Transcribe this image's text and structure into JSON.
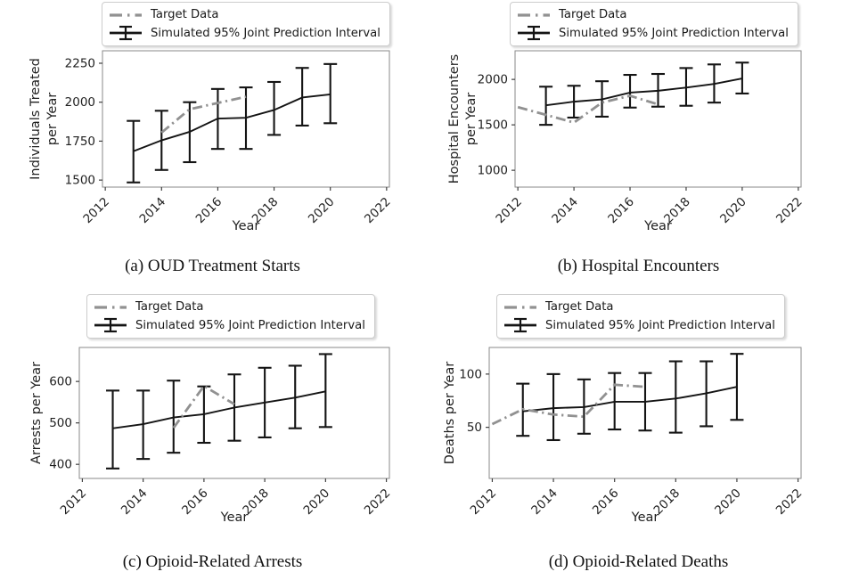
{
  "legend": {
    "target_label": "Target Data",
    "simulated_label": "Simulated 95% Joint Prediction Interval"
  },
  "colors": {
    "target": "#919191",
    "simulated": "#141414",
    "spine": "#8a8a8a",
    "tick": "#404040",
    "text": "#1f1f1f",
    "caption": "#111111",
    "legend_border": "#cccccc",
    "background": "#ffffff"
  },
  "chart_data": [
    {
      "id": "a",
      "type": "line",
      "caption": "(a) OUD Treatment Starts",
      "xlabel": "Year",
      "ylabel": "Individuals Treated\nper Year",
      "xlim": [
        2011.9,
        2022.1
      ],
      "ylim": [
        1455,
        2330
      ],
      "xticks": [
        2012,
        2014,
        2016,
        2018,
        2020,
        2022
      ],
      "yticks": [
        1500,
        1750,
        2000,
        2250
      ],
      "x": [
        2013,
        2014,
        2015,
        2016,
        2017,
        2018,
        2019,
        2020
      ],
      "series": [
        {
          "name": "Simulated 95% Joint Prediction Interval",
          "style": "errorbar",
          "values": [
            1685,
            1755,
            1810,
            1895,
            1900,
            1950,
            2030,
            2050
          ],
          "lower": [
            1485,
            1565,
            1615,
            1700,
            1700,
            1790,
            1850,
            1865
          ],
          "upper": [
            1880,
            1945,
            2000,
            2085,
            2095,
            2130,
            2220,
            2245
          ]
        },
        {
          "name": "Target Data",
          "style": "dashdot",
          "x": [
            2014,
            2015,
            2016,
            2017
          ],
          "values": [
            1805,
            1955,
            1995,
            2035
          ]
        }
      ]
    },
    {
      "id": "b",
      "type": "line",
      "caption": "(b) Hospital Encounters",
      "xlabel": "Year",
      "ylabel": "Hospital Encounters\nper Year",
      "xlim": [
        2011.9,
        2022.1
      ],
      "ylim": [
        815,
        2315
      ],
      "xticks": [
        2012,
        2014,
        2016,
        2018,
        2020,
        2022
      ],
      "yticks": [
        1000,
        1500,
        2000
      ],
      "x": [
        2013,
        2014,
        2015,
        2016,
        2017,
        2018,
        2019,
        2020
      ],
      "series": [
        {
          "name": "Simulated 95% Joint Prediction Interval",
          "style": "errorbar",
          "values": [
            1715,
            1755,
            1780,
            1855,
            1875,
            1910,
            1950,
            2010
          ],
          "lower": [
            1500,
            1580,
            1590,
            1690,
            1700,
            1710,
            1745,
            1845
          ],
          "upper": [
            1920,
            1930,
            1980,
            2050,
            2060,
            2125,
            2165,
            2185
          ]
        },
        {
          "name": "Target Data",
          "style": "dashdot",
          "x": [
            2012,
            2013,
            2014,
            2015,
            2016,
            2017
          ],
          "values": [
            1695,
            1610,
            1525,
            1745,
            1820,
            1725
          ]
        }
      ]
    },
    {
      "id": "c",
      "type": "line",
      "caption": "(c) Opioid-Related Arrests",
      "xlabel": "Year",
      "ylabel": "Arrests per Year",
      "xlim": [
        2011.9,
        2022.1
      ],
      "ylim": [
        366,
        682
      ],
      "xticks": [
        2012,
        2014,
        2016,
        2018,
        2020,
        2022
      ],
      "yticks": [
        400,
        500,
        600
      ],
      "x": [
        2013,
        2014,
        2015,
        2016,
        2017,
        2018,
        2019,
        2020
      ],
      "series": [
        {
          "name": "Simulated 95% Joint Prediction Interval",
          "style": "errorbar",
          "values": [
            487,
            497,
            513,
            521,
            537,
            549,
            561,
            576
          ],
          "lower": [
            390,
            413,
            428,
            452,
            457,
            465,
            487,
            490
          ],
          "upper": [
            578,
            578,
            602,
            588,
            617,
            633,
            638,
            666
          ]
        },
        {
          "name": "Target Data",
          "style": "dashdot",
          "x": [
            2015,
            2016,
            2017
          ],
          "values": [
            488,
            589,
            545
          ]
        }
      ]
    },
    {
      "id": "d",
      "type": "line",
      "caption": "(d) Opioid-Related Deaths",
      "xlabel": "Year",
      "ylabel": "Deaths per Year",
      "xlim": [
        2011.9,
        2022.1
      ],
      "ylim": [
        2,
        125
      ],
      "xticks": [
        2012,
        2014,
        2016,
        2018,
        2020,
        2022
      ],
      "yticks": [
        50,
        100
      ],
      "x": [
        2013,
        2014,
        2015,
        2016,
        2017,
        2018,
        2019,
        2020
      ],
      "series": [
        {
          "name": "Simulated 95% Joint Prediction Interval",
          "style": "errorbar",
          "values": [
            65,
            68,
            69,
            74,
            74,
            77,
            82,
            88
          ],
          "lower": [
            42,
            38,
            44,
            48,
            47,
            45,
            51,
            57
          ],
          "upper": [
            91,
            100,
            95,
            101,
            101,
            112,
            112,
            119
          ]
        },
        {
          "name": "Target Data",
          "style": "dashdot",
          "x": [
            2012,
            2013,
            2014,
            2015,
            2016,
            2017
          ],
          "values": [
            53,
            67,
            62,
            60,
            90,
            88
          ]
        }
      ]
    }
  ]
}
